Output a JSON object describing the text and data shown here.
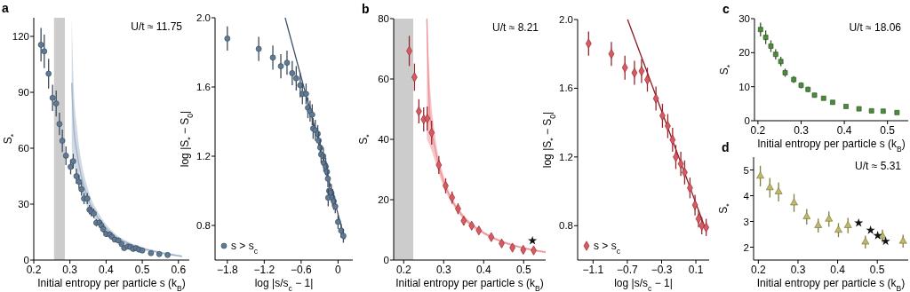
{
  "chart_data": [
    {
      "type": "scatter",
      "title": "a",
      "xlabel": "Initial entropy per particle s (k$_{B}$)",
      "ylabel": "S$_{*}$",
      "annotations": [
        "U/t ≈ 11.75"
      ],
      "marker": "circle",
      "xlim": [
        0.2,
        0.63
      ],
      "ylim": [
        0,
        130
      ],
      "xticks": [
        0.2,
        0.3,
        0.4,
        0.5,
        0.6
      ],
      "yticks": [
        0,
        30,
        60,
        90,
        120
      ],
      "bands": [
        {
          "axis": "x",
          "from": 0.256,
          "to": 0.286,
          "color": "#cccccc"
        }
      ],
      "series": [
        {
          "type": "line",
          "marker": "none",
          "color": "#9fb1c7",
          "x": [
            0.305,
            0.31,
            0.32,
            0.33,
            0.35,
            0.38,
            0.42,
            0.46,
            0.5,
            0.55,
            0.61
          ],
          "values": [
            95,
            73,
            57,
            46,
            33,
            22,
            13.5,
            9,
            6.2,
            4,
            2
          ],
          "lower": [
            60,
            52,
            45,
            38,
            28,
            19,
            12,
            8,
            5.5,
            3.5,
            1.5
          ],
          "upper": [
            130,
            95,
            70,
            55,
            38,
            25,
            15,
            10,
            7,
            4.5,
            2.5
          ]
        },
        {
          "color": "#5f7a96",
          "x": [
            0.22,
            0.229,
            0.241,
            0.252,
            0.262,
            0.271,
            0.279,
            0.289,
            0.302,
            0.309,
            0.318,
            0.325,
            0.332,
            0.339,
            0.348,
            0.354,
            0.359,
            0.366,
            0.373,
            0.382,
            0.387,
            0.392,
            0.4,
            0.41,
            0.416,
            0.424,
            0.434,
            0.443,
            0.45,
            0.46,
            0.467,
            0.475,
            0.483,
            0.491,
            0.5,
            0.524,
            0.547,
            0.57
          ],
          "values": [
            115.5,
            112,
            100,
            87,
            84,
            73,
            64,
            56,
            50,
            53,
            45,
            42,
            38,
            33,
            33,
            27,
            26,
            25,
            20,
            20,
            18.5,
            16.6,
            14,
            13.7,
            12.5,
            11,
            10.5,
            8.6,
            6.4,
            7.3,
            7,
            6,
            6.4,
            5.6,
            5.1,
            3.7,
            3.2,
            2.7
          ],
          "errors": [
            9,
            9,
            8,
            7,
            7,
            6,
            6,
            5,
            4,
            4,
            4,
            3.5,
            3.5,
            3,
            3,
            2.5,
            2.5,
            2.5,
            2,
            2,
            2,
            1.8,
            1.6,
            1.6,
            1.5,
            1.4,
            1.4,
            1.3,
            1.2,
            1.2,
            1.1,
            1.1,
            1.1,
            1,
            1,
            0.9,
            0.8,
            0.8
          ]
        }
      ]
    },
    {
      "type": "scatter",
      "xlabel": "log |s/s$_{c}$ − 1|",
      "ylabel": "log |S$_{*}$ − S$_{0}$|",
      "marker": "circle",
      "legend": "bottom left",
      "xlim": [
        -2.0,
        0.24
      ],
      "ylim": [
        0.6,
        2.0
      ],
      "xticks": [
        {
          "value": -1.8,
          "label": "−1.8"
        },
        {
          "value": -1.2,
          "label": "−1.2"
        },
        {
          "value": -0.6,
          "label": "−0.6"
        },
        0
      ],
      "yticks": [
        0.8,
        1.2,
        1.6,
        {
          "value": 2.0,
          "label": "2.0"
        }
      ],
      "series": [
        {
          "type": "line",
          "marker": "none",
          "color": "#3d5570",
          "x": [
            -0.86,
            0.11
          ],
          "values": [
            2.0,
            0.72
          ]
        },
        {
          "name": "s > s$_{c}$",
          "color": "#5f7a96",
          "x": [
            -1.8,
            -1.29,
            -1.06,
            -0.93,
            -0.83,
            -0.745,
            -0.68,
            -0.615,
            -0.58,
            -0.52,
            -0.49,
            -0.455,
            -0.42,
            -0.405,
            -0.37,
            -0.33,
            -0.315,
            -0.29,
            -0.275,
            -0.24,
            -0.23,
            -0.2,
            -0.18,
            -0.165,
            -0.145,
            -0.16,
            -0.11,
            -0.09,
            -0.07,
            -0.045,
            0,
            0.05,
            0.087
          ],
          "values": [
            1.88,
            1.82,
            1.77,
            1.72,
            1.74,
            1.68,
            1.65,
            1.61,
            1.56,
            1.56,
            1.48,
            1.46,
            1.44,
            1.36,
            1.35,
            1.33,
            1.29,
            1.25,
            1.21,
            1.2,
            1.16,
            1.14,
            1.11,
            1.07,
            1.0,
            0.96,
            0.99,
            0.96,
            0.94,
            0.91,
            0.82,
            0.77,
            0.74
          ],
          "errors": [
            0.07,
            0.07,
            0.07,
            0.07,
            0.07,
            0.07,
            0.07,
            0.07,
            0.06,
            0.06,
            0.06,
            0.06,
            0.06,
            0.06,
            0.06,
            0.05,
            0.05,
            0.05,
            0.05,
            0.05,
            0.05,
            0.05,
            0.05,
            0.05,
            0.05,
            0.05,
            0.05,
            0.05,
            0.05,
            0.04,
            0.04,
            0.04,
            0.04
          ]
        }
      ]
    },
    {
      "type": "scatter",
      "title": "b",
      "xlabel": "Initial entropy per particle s (k$_{B}$)",
      "ylabel": "S$_{*}$",
      "annotations": [
        "U/t ≈ 8.21"
      ],
      "marker": "diamond",
      "xlim": [
        0.175,
        0.555
      ],
      "ylim": [
        0,
        80
      ],
      "xticks": [
        0.2,
        0.3,
        0.4,
        0.5
      ],
      "yticks": [
        0,
        20,
        40,
        60,
        80
      ],
      "bands": [
        {
          "axis": "x",
          "from": 0.175,
          "to": 0.224,
          "color": "#cccccc"
        }
      ],
      "series": [
        {
          "type": "line",
          "marker": "none",
          "color": "#ee9095",
          "x": [
            0.258,
            0.265,
            0.28,
            0.3,
            0.32,
            0.35,
            0.4,
            0.45,
            0.5,
            0.555
          ],
          "values": [
            80,
            49,
            36,
            26,
            20,
            14.2,
            9,
            5.9,
            4,
            2.6
          ],
          "lower": [
            40,
            38,
            32,
            24,
            19,
            13.3,
            8.5,
            5.5,
            3.6,
            2.3
          ],
          "upper": [
            80,
            60,
            40,
            28,
            21,
            15,
            9.5,
            6.3,
            4.3,
            3
          ]
        },
        {
          "color": "#d65b63",
          "x": [
            0.214,
            0.227,
            0.238,
            0.25,
            0.259,
            0.27,
            0.288,
            0.305,
            0.321,
            0.336,
            0.35,
            0.37,
            0.388,
            0.419,
            0.445,
            0.472,
            0.499,
            0.525
          ],
          "values": [
            69.3,
            60.6,
            49.3,
            46.6,
            46.9,
            42.2,
            31.5,
            24.6,
            20.7,
            17,
            13,
            11.4,
            9.8,
            7.6,
            5.5,
            4.1,
            3.4,
            3.2
          ],
          "errors": [
            5,
            4.5,
            4,
            4,
            4,
            4,
            3,
            2.5,
            2,
            1.8,
            1.5,
            1.2,
            1,
            0.8,
            0.7,
            0.6,
            0.5,
            0.5
          ]
        },
        {
          "color": "#111111",
          "marker": "star",
          "x": [
            0.522
          ],
          "values": [
            6.4
          ]
        }
      ]
    },
    {
      "type": "scatter",
      "xlabel": "log |s/s$_{c}$ − 1|",
      "ylabel": "log |S$_{*}$ − S$_{0}$|",
      "marker": "diamond",
      "legend": "bottom left",
      "xlim": [
        -1.28,
        0.255
      ],
      "ylim": [
        0.6,
        2.0
      ],
      "xticks": [
        {
          "value": -1.1,
          "label": "−1.1"
        },
        {
          "value": -0.7,
          "label": "−0.7"
        },
        {
          "value": -0.3,
          "label": "−0.3"
        },
        0.1
      ],
      "yticks": [
        0.8,
        1.2,
        1.6,
        {
          "value": 2.0,
          "label": "2.0"
        }
      ],
      "series": [
        {
          "type": "line",
          "marker": "none",
          "color": "#8b1a22",
          "x": [
            -0.697,
            0.22
          ],
          "values": [
            2.0,
            0.77
          ]
        },
        {
          "name": "s > s$_{c}$",
          "color": "#d65b63",
          "x": [
            -1.152,
            -0.886,
            -0.728,
            -0.617,
            -0.534,
            -0.466,
            -0.366,
            -0.29,
            -0.228,
            -0.172,
            -0.134,
            -0.076,
            -0.031,
            0.031,
            0.09,
            0.131,
            0.169,
            0.22
          ],
          "values": [
            1.86,
            1.8,
            1.72,
            1.69,
            1.7,
            1.65,
            1.54,
            1.44,
            1.38,
            1.3,
            1.2,
            1.16,
            1.11,
            1.02,
            0.92,
            0.84,
            0.8,
            0.79
          ],
          "errors": [
            0.07,
            0.07,
            0.07,
            0.07,
            0.07,
            0.07,
            0.07,
            0.07,
            0.07,
            0.07,
            0.07,
            0.07,
            0.07,
            0.06,
            0.06,
            0.05,
            0.05,
            0.05
          ]
        }
      ]
    },
    {
      "type": "scatter",
      "title": "c",
      "xlabel": "Initial entropy per particle s (k$_{B}$)",
      "ylabel": "S$_{*}$",
      "annotations": [
        "U/t ≈ 18.06"
      ],
      "marker": "square",
      "xlim": [
        0.192,
        0.548
      ],
      "ylim": [
        0,
        30
      ],
      "xticks": [
        0.2,
        0.3,
        0.4,
        0.5
      ],
      "yticks": [
        0,
        10,
        20,
        30
      ],
      "series": [
        {
          "color": "#4c8a3c",
          "x": [
            0.206,
            0.218,
            0.23,
            0.241,
            0.253,
            0.263,
            0.283,
            0.3,
            0.316,
            0.331,
            0.352,
            0.373,
            0.404,
            0.434,
            0.463,
            0.49,
            0.522
          ],
          "values": [
            26.8,
            24.5,
            21.9,
            19.5,
            17.4,
            14.1,
            12.1,
            10.4,
            9.2,
            7.5,
            6.6,
            5.4,
            4.2,
            3.5,
            2.9,
            2.8,
            2.4
          ],
          "errors": [
            2,
            2,
            1.7,
            1.5,
            1.4,
            1.2,
            1,
            0.9,
            0.8,
            0.6,
            0.5,
            0.5,
            0.4,
            0.4,
            0.3,
            0.3,
            0.3
          ]
        }
      ]
    },
    {
      "type": "scatter",
      "title": "d",
      "xlabel": "Initial entropy per particle s (k$_{B}$)",
      "ylabel": "S$_{*}$",
      "annotations": [
        "U/t ≈ 5.31"
      ],
      "marker": "triangle",
      "xlim": [
        0.188,
        0.578
      ],
      "ylim": [
        1.5,
        5.5
      ],
      "xticks": [
        0.2,
        0.3,
        0.4,
        0.5
      ],
      "yticks": [
        2,
        3,
        4,
        5
      ],
      "series": [
        {
          "color": "#bdb86e",
          "x": [
            0.205,
            0.229,
            0.251,
            0.29,
            0.322,
            0.351,
            0.378,
            0.402,
            0.426,
            0.47,
            0.513,
            0.565
          ],
          "values": [
            4.76,
            4.31,
            4.15,
            3.72,
            3.18,
            2.84,
            3.09,
            2.66,
            2.84,
            2.2,
            2.43,
            2.23
          ],
          "errors": [
            0.4,
            0.38,
            0.37,
            0.35,
            0.3,
            0.27,
            0.3,
            0.27,
            0.3,
            0.25,
            0.25,
            0.25
          ]
        },
        {
          "color": "#111111",
          "marker": "star",
          "x": [
            0.453,
            0.483,
            0.501,
            0.521
          ],
          "values": [
            2.94,
            2.66,
            2.45,
            2.23
          ]
        }
      ]
    }
  ]
}
